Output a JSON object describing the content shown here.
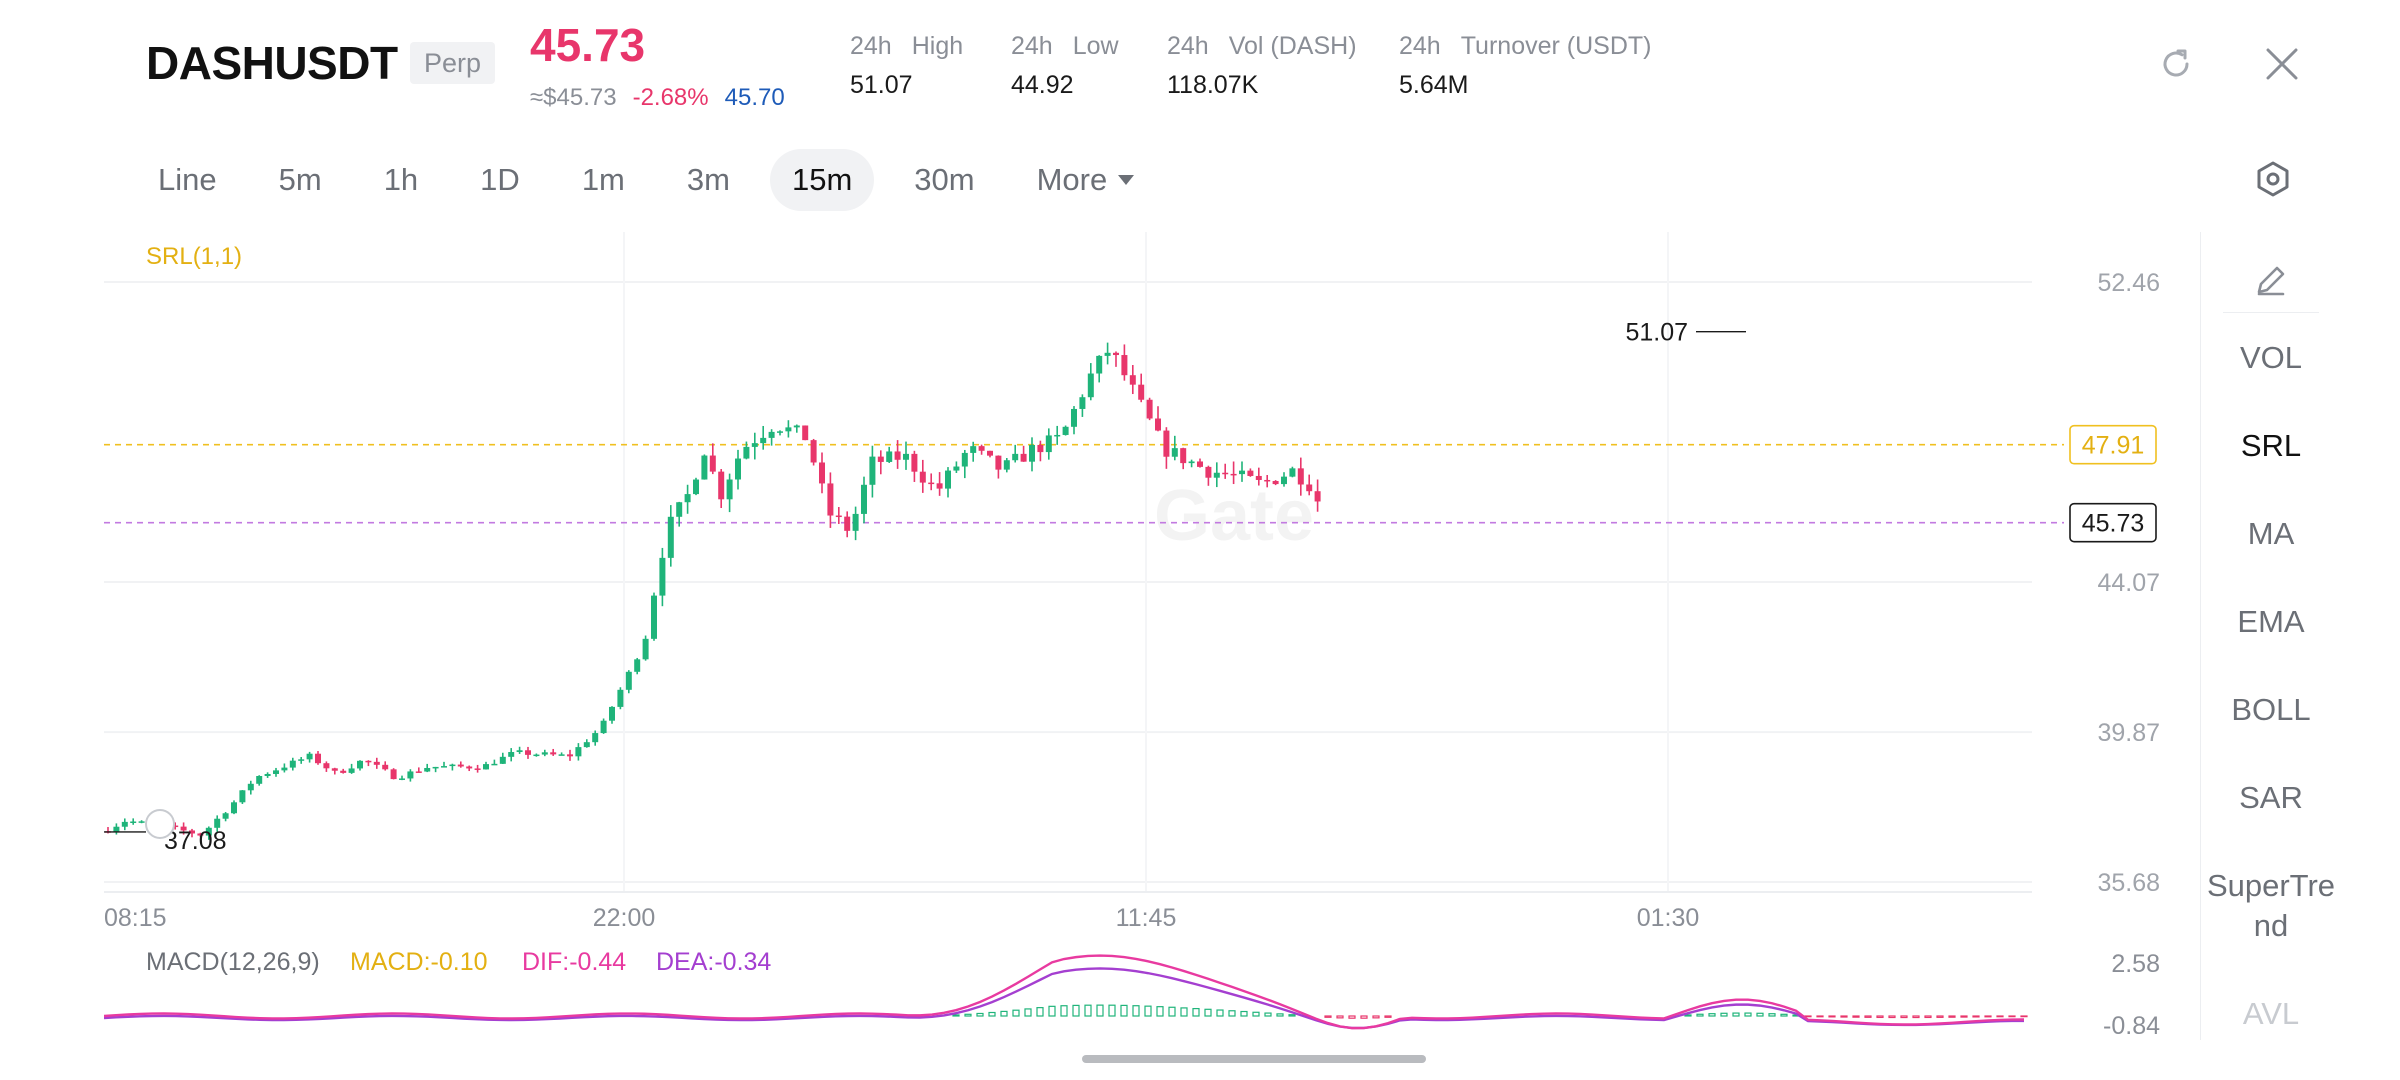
{
  "header": {
    "symbol": "DASHUSDT",
    "badge": "Perp",
    "last_price": "45.73",
    "approx_price": "≈$45.73",
    "change_pct": "-2.68%",
    "mark_price": "45.70",
    "stats": [
      {
        "period": "24h",
        "label": "High",
        "value": "51.07"
      },
      {
        "period": "24h",
        "label": "Low",
        "value": "44.92"
      },
      {
        "period": "24h",
        "label": "Vol (DASH)",
        "value": "118.07K"
      },
      {
        "period": "24h",
        "label": "Turnover (USDT)",
        "value": "5.64M"
      }
    ],
    "icons": {
      "refresh": "refresh-icon",
      "close": "close-icon"
    }
  },
  "intervals": {
    "items": [
      "Line",
      "5m",
      "1h",
      "1D",
      "1m",
      "3m",
      "15m",
      "30m"
    ],
    "active": "15m",
    "more_label": "More"
  },
  "chart": {
    "watermark": "Gate",
    "srl_label": "SRL(1,1)",
    "y_axis": {
      "ticks": [
        "52.46",
        "44.07",
        "39.87",
        "35.68"
      ],
      "min": 35.68,
      "max": 52.46
    },
    "x_axis": {
      "ticks": [
        "08:15",
        "22:00",
        "11:45",
        "01:30"
      ]
    },
    "srl_line": "47.91",
    "current_price": "45.73",
    "high_marker": "51.07",
    "low_marker": "37.08",
    "colors": {
      "up": "#1fb47a",
      "down": "#e8366b",
      "srl": "#f0c020",
      "price_line": "#c27ae0"
    }
  },
  "macd": {
    "label": "MACD(12,26,9)",
    "macd": "MACD:-0.10",
    "dif": "DIF:-0.44",
    "dea": "DEA:-0.34",
    "y_ticks": [
      "2.58",
      "-0.84"
    ],
    "colors": {
      "macd": "#f0b90b",
      "dif": "#e83aa0",
      "dea": "#a43fd0"
    }
  },
  "side_panel": {
    "items": [
      "VOL",
      "SRL",
      "MA",
      "EMA",
      "BOLL",
      "SAR",
      "SuperTrend",
      "AVL"
    ],
    "active": "SRL",
    "icons": {
      "draw": "pencil-icon",
      "settings": "hexagon-settings-icon"
    }
  }
}
